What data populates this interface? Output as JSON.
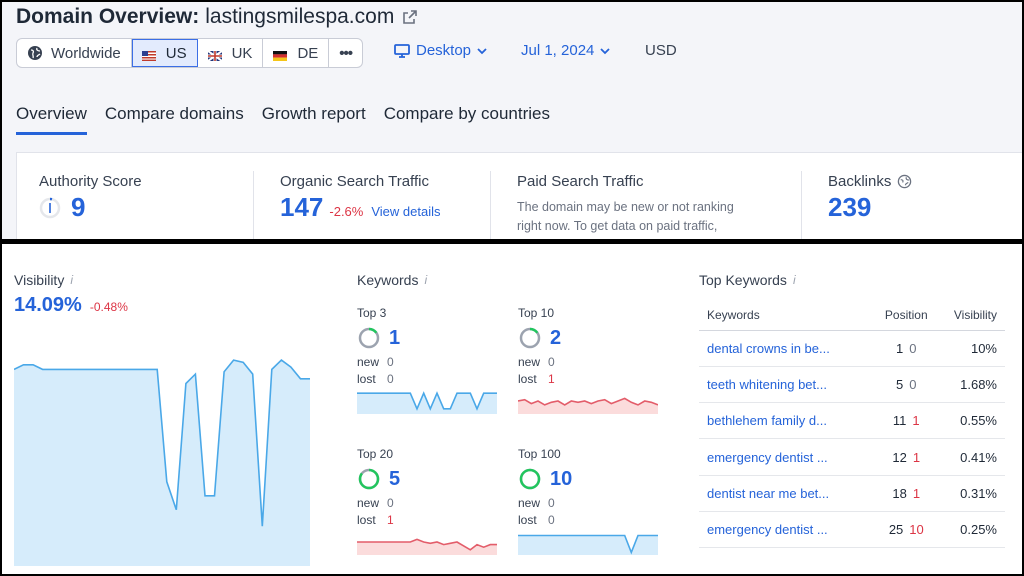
{
  "header": {
    "title_prefix": "Domain Overview:",
    "domain": "lastingsmilespa.com"
  },
  "regions": [
    {
      "label": "Worldwide",
      "icon": "globe-icon"
    },
    {
      "label": "US",
      "icon": "us-flag-icon"
    },
    {
      "label": "UK",
      "icon": "uk-flag-icon"
    },
    {
      "label": "DE",
      "icon": "de-flag-icon"
    },
    {
      "label": "•••",
      "icon": "more-icon"
    }
  ],
  "filters": {
    "device": "Desktop",
    "date": "Jul 1, 2024",
    "currency": "USD"
  },
  "tabs": [
    "Overview",
    "Compare domains",
    "Growth report",
    "Compare by countries"
  ],
  "metrics": {
    "authority": {
      "label": "Authority Score",
      "value": "9"
    },
    "organic": {
      "label": "Organic Search Traffic",
      "value": "147",
      "delta": "-2.6%",
      "link": "View details"
    },
    "paid": {
      "label": "Paid Search Traffic",
      "note1": "The domain may be new or not ranking",
      "note2": "right now. To get data on paid traffic,"
    },
    "backlinks": {
      "label": "Backlinks",
      "value": "239"
    }
  },
  "visibility": {
    "label": "Visibility",
    "value": "14.09%",
    "delta": "-0.48%",
    "trend": [
      0.84,
      0.86,
      0.86,
      0.84,
      0.84,
      0.84,
      0.84,
      0.84,
      0.84,
      0.84,
      0.84,
      0.84,
      0.84,
      0.84,
      0.84,
      0.84,
      0.36,
      0.24,
      0.78,
      0.82,
      0.3,
      0.3,
      0.83,
      0.88,
      0.87,
      0.82,
      0.17,
      0.84,
      0.88,
      0.85,
      0.8,
      0.8
    ]
  },
  "keywords": {
    "label": "Keywords",
    "blocks": [
      {
        "title": "Top 3",
        "count": "1",
        "new_label": "new",
        "new": "0",
        "lost_label": "lost",
        "lost": "0",
        "ring": 0.15,
        "tone": "blue",
        "trend": [
          0.8,
          0.8,
          0.8,
          0.8,
          0.8,
          0.8,
          0.8,
          0.8,
          0.8,
          0.2,
          0.8,
          0.2,
          0.8,
          0.2,
          0.2,
          0.8,
          0.8,
          0.8,
          0.2,
          0.8,
          0.8,
          0.8
        ]
      },
      {
        "title": "Top 10",
        "count": "2",
        "new_label": "new",
        "new": "0",
        "lost_label": "lost",
        "lost": "1",
        "ring": 0.15,
        "tone": "red",
        "trend": [
          0.5,
          0.55,
          0.4,
          0.5,
          0.35,
          0.45,
          0.5,
          0.35,
          0.5,
          0.45,
          0.5,
          0.4,
          0.5,
          0.55,
          0.4,
          0.5,
          0.6,
          0.45,
          0.35,
          0.5,
          0.45,
          0.35
        ]
      },
      {
        "title": "Top 20",
        "count": "5",
        "new_label": "new",
        "new": "0",
        "lost_label": "lost",
        "lost": "1",
        "ring": 0.85,
        "tone": "red",
        "trend": [
          0.5,
          0.5,
          0.5,
          0.5,
          0.5,
          0.5,
          0.5,
          0.5,
          0.5,
          0.6,
          0.5,
          0.45,
          0.5,
          0.4,
          0.45,
          0.5,
          0.35,
          0.2,
          0.4,
          0.3,
          0.4,
          0.4
        ]
      },
      {
        "title": "Top 100",
        "count": "10",
        "new_label": "new",
        "new": "0",
        "lost_label": "lost",
        "lost": "0",
        "ring": 1.0,
        "tone": "blue",
        "trend": [
          0.75,
          0.75,
          0.75,
          0.75,
          0.75,
          0.75,
          0.75,
          0.75,
          0.75,
          0.75,
          0.75,
          0.75,
          0.75,
          0.75,
          0.75,
          0.75,
          0.75,
          0.1,
          0.75,
          0.75,
          0.75,
          0.75
        ]
      }
    ]
  },
  "top_keywords": {
    "label": "Top Keywords",
    "columns": [
      "Keywords",
      "Position",
      "Visibility"
    ],
    "rows": [
      {
        "keyword": "dental crowns in be...",
        "position": "1",
        "change": "0",
        "visibility": "10%"
      },
      {
        "keyword": "teeth whitening bet...",
        "position": "5",
        "change": "0",
        "visibility": "1.68%"
      },
      {
        "keyword": "bethlehem family d...",
        "position": "11",
        "change": "1",
        "visibility": "0.55%"
      },
      {
        "keyword": "emergency dentist ...",
        "position": "12",
        "change": "1",
        "visibility": "0.41%"
      },
      {
        "keyword": "dentist near me bet...",
        "position": "18",
        "change": "1",
        "visibility": "0.31%"
      },
      {
        "keyword": "emergency dentist ...",
        "position": "25",
        "change": "10",
        "visibility": "0.25%"
      }
    ]
  },
  "colors": {
    "accent": "#2563d9",
    "negative": "#dc3545",
    "ring_green": "#22c55e",
    "area_fill": "#d6ecfb",
    "area_line": "#4aa8e8",
    "red_fill": "#fbdcdc",
    "red_line": "#e35d6a"
  }
}
